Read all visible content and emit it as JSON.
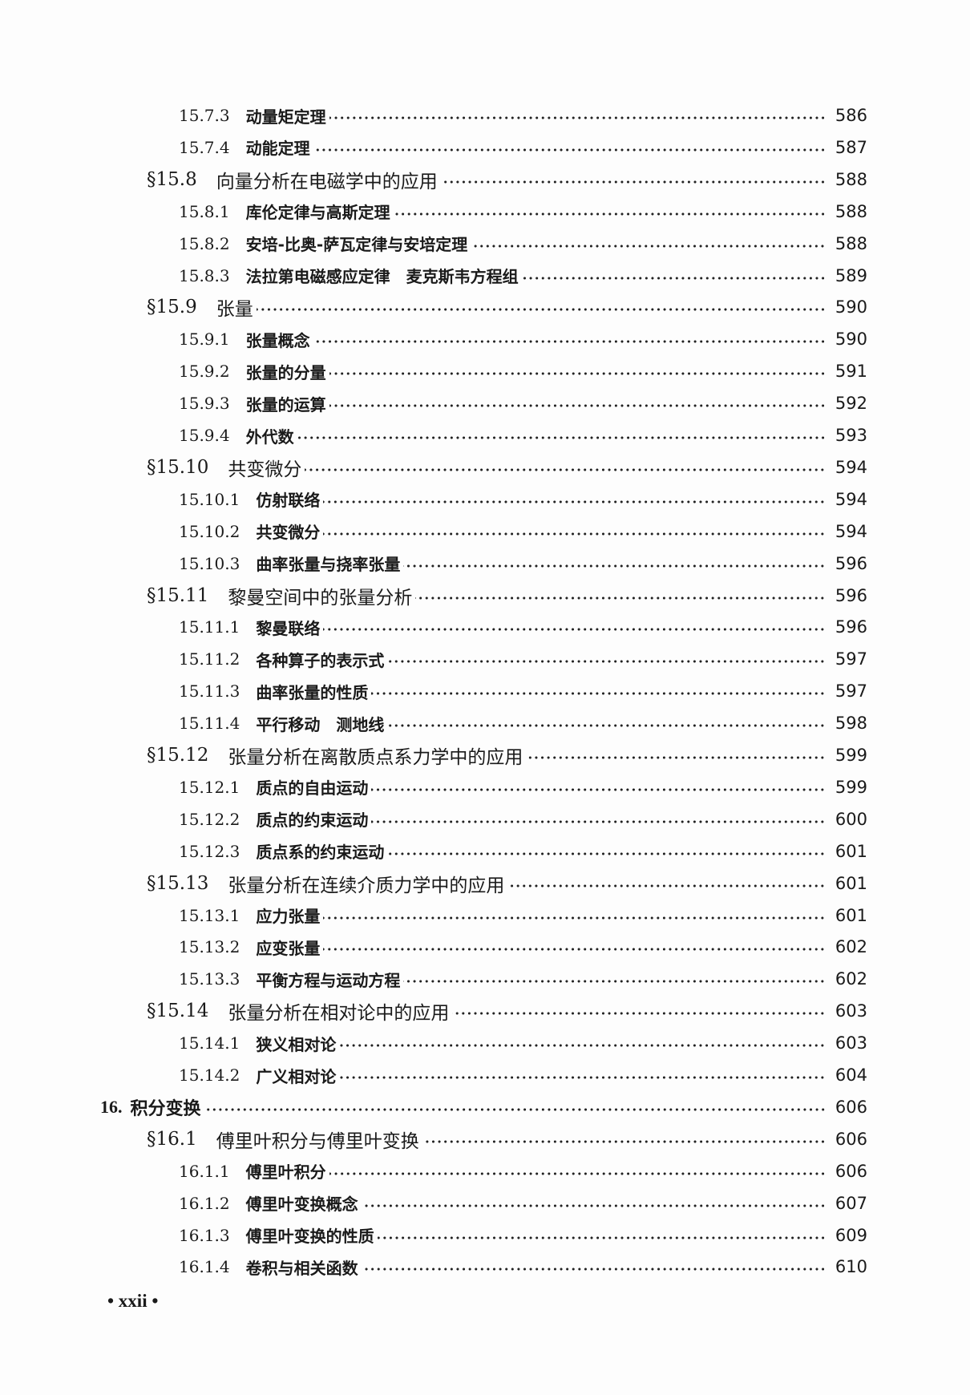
{
  "entries": [
    {
      "level": "sub",
      "number": "15.7.3",
      "title": "动量矩定理",
      "page": "586"
    },
    {
      "level": "sub",
      "number": "15.7.4",
      "title": "动能定理",
      "page": "587"
    },
    {
      "level": "sec",
      "number": "§15.8",
      "title": "向量分析在电磁学中的应用",
      "page": "588"
    },
    {
      "level": "sub",
      "number": "15.8.1",
      "title": "库伦定律与高斯定理",
      "page": "588"
    },
    {
      "level": "sub",
      "number": "15.8.2",
      "title": "安培-比奥-萨瓦定律与安培定理",
      "page": "588"
    },
    {
      "level": "sub",
      "number": "15.8.3",
      "title": "法拉第电磁感应定律　麦克斯韦方程组",
      "page": "589"
    },
    {
      "level": "sec",
      "number": "§15.9",
      "title": "张量",
      "page": "590"
    },
    {
      "level": "sub",
      "number": "15.9.1",
      "title": "张量概念",
      "page": "590"
    },
    {
      "level": "sub",
      "number": "15.9.2",
      "title": "张量的分量",
      "page": "591"
    },
    {
      "level": "sub",
      "number": "15.9.3",
      "title": "张量的运算",
      "page": "592"
    },
    {
      "level": "sub",
      "number": "15.9.4",
      "title": "外代数",
      "page": "593"
    },
    {
      "level": "sec",
      "number": "§15.10",
      "title": "共变微分",
      "page": "594"
    },
    {
      "level": "sub",
      "number": "15.10.1",
      "title": "仿射联络",
      "page": "594"
    },
    {
      "level": "sub",
      "number": "15.10.2",
      "title": "共变微分",
      "page": "594"
    },
    {
      "level": "sub",
      "number": "15.10.3",
      "title": "曲率张量与挠率张量",
      "page": "596"
    },
    {
      "level": "sec",
      "number": "§15.11",
      "title": "黎曼空间中的张量分析",
      "page": "596"
    },
    {
      "level": "sub",
      "number": "15.11.1",
      "title": "黎曼联络",
      "page": "596"
    },
    {
      "level": "sub",
      "number": "15.11.2",
      "title": "各种算子的表示式",
      "page": "597"
    },
    {
      "level": "sub",
      "number": "15.11.3",
      "title": "曲率张量的性质",
      "page": "597"
    },
    {
      "level": "sub",
      "number": "15.11.4",
      "title": "平行移动　测地线",
      "page": "598"
    },
    {
      "level": "sec",
      "number": "§15.12",
      "title": "张量分析在离散质点系力学中的应用",
      "page": "599"
    },
    {
      "level": "sub",
      "number": "15.12.1",
      "title": "质点的自由运动",
      "page": "599"
    },
    {
      "level": "sub",
      "number": "15.12.2",
      "title": "质点的约束运动",
      "page": "600"
    },
    {
      "level": "sub",
      "number": "15.12.3",
      "title": "质点系的约束运动",
      "page": "601"
    },
    {
      "level": "sec",
      "number": "§15.13",
      "title": "张量分析在连续介质力学中的应用",
      "page": "601"
    },
    {
      "level": "sub",
      "number": "15.13.1",
      "title": "应力张量",
      "page": "601"
    },
    {
      "level": "sub",
      "number": "15.13.2",
      "title": "应变张量",
      "page": "602"
    },
    {
      "level": "sub",
      "number": "15.13.3",
      "title": "平衡方程与运动方程",
      "page": "602"
    },
    {
      "level": "sec",
      "number": "§15.14",
      "title": "张量分析在相对论中的应用",
      "page": "603"
    },
    {
      "level": "sub",
      "number": "15.14.1",
      "title": "狭义相对论",
      "page": "603"
    },
    {
      "level": "sub",
      "number": "15.14.2",
      "title": "广义相对论",
      "page": "604"
    },
    {
      "level": "ch",
      "number": "16.",
      "title": "积分变换",
      "page": "606"
    },
    {
      "level": "sec",
      "number": "§16.1",
      "title": "傅里叶积分与傅里叶变换",
      "page": "606"
    },
    {
      "level": "sub",
      "number": "16.1.1",
      "title": "傅里叶积分",
      "page": "606"
    },
    {
      "level": "sub",
      "number": "16.1.2",
      "title": "傅里叶变换概念",
      "page": "607"
    },
    {
      "level": "sub",
      "number": "16.1.3",
      "title": "傅里叶变换的性质",
      "page": "609"
    },
    {
      "level": "sub",
      "number": "16.1.4",
      "title": "卷积与相关函数",
      "page": "610"
    }
  ],
  "footer": {
    "page_label": "• xxii •"
  }
}
